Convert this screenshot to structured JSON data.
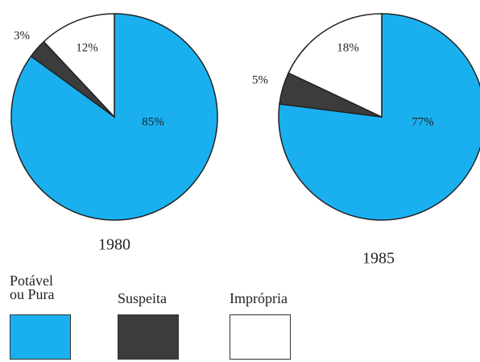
{
  "chart_data": [
    {
      "type": "pie",
      "title": "1980",
      "values": [
        85,
        3,
        12
      ],
      "value_labels": [
        "85%",
        "3%",
        "12%"
      ]
    },
    {
      "type": "pie",
      "title": "1985",
      "values": [
        77,
        5,
        18
      ],
      "value_labels": [
        "77%",
        "5%",
        "18%"
      ]
    }
  ],
  "legend": {
    "items": [
      {
        "name": "Potável ou Pura",
        "color": "#1ab0f0"
      },
      {
        "name": "Suspeita",
        "color": "#3c3c3c"
      },
      {
        "name": "Imprópria",
        "color": "#ffffff"
      }
    ]
  }
}
